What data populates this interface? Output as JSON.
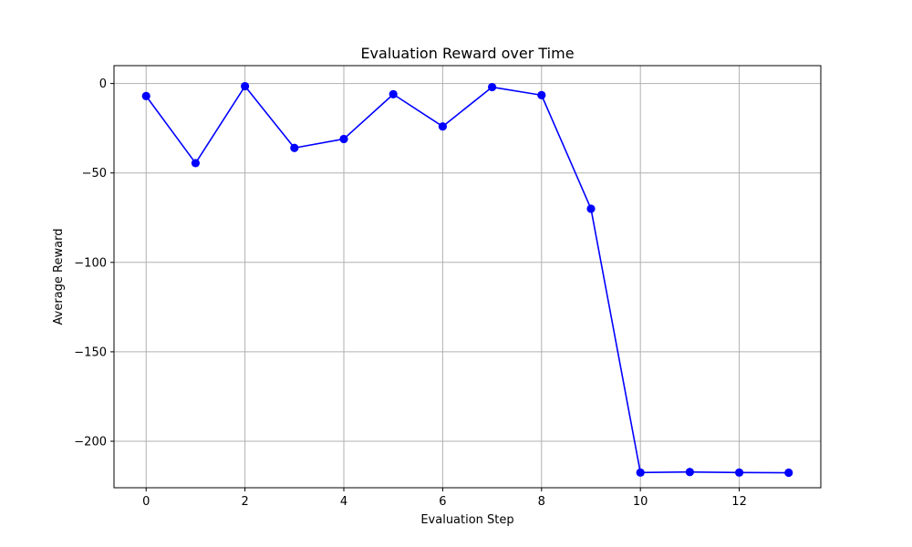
{
  "chart_data": {
    "type": "line",
    "title": "Evaluation Reward over Time",
    "xlabel": "Evaluation Step",
    "ylabel": "Average Reward",
    "xlim": [
      -0.65,
      13.65
    ],
    "ylim": [
      -226,
      10
    ],
    "xticks": [
      0,
      2,
      4,
      6,
      8,
      10,
      12
    ],
    "xtick_labels": [
      "0",
      "2",
      "4",
      "6",
      "8",
      "10",
      "12"
    ],
    "yticks": [
      0,
      -50,
      -100,
      -150,
      -200
    ],
    "ytick_labels": [
      "0",
      "−50",
      "−100",
      "−150",
      "−200"
    ],
    "grid": true,
    "series": [
      {
        "color": "#0000ff",
        "marker": "circle",
        "x": [
          0,
          1,
          2,
          3,
          4,
          5,
          6,
          7,
          8,
          9,
          10,
          11,
          12,
          13
        ],
        "y": [
          -7,
          -44.5,
          -1.5,
          -36,
          -31,
          -6,
          -24,
          -2,
          -6.5,
          -70,
          -217.5,
          -217.2,
          -217.5,
          -217.6
        ]
      }
    ]
  }
}
